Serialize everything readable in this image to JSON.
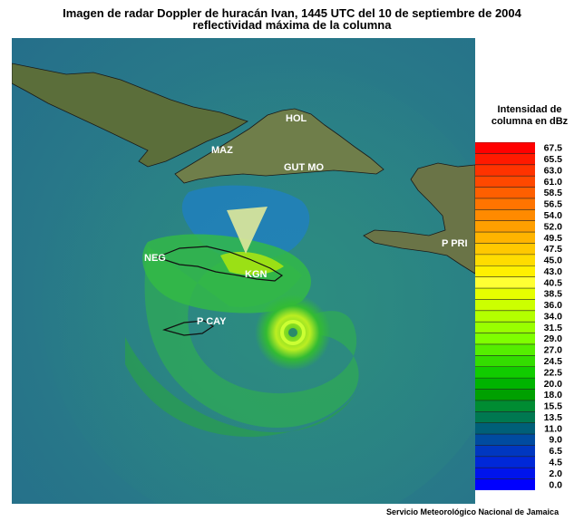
{
  "title": {
    "line1": "Imagen de radar Doppler de huracán Ivan, 1445 UTC del 10 de septiembre de 2004",
    "line2": "reflectividad máxima de la columna"
  },
  "legend": {
    "title_line1": "Intensidad de",
    "title_line2": "columna en dBz",
    "values": [
      "67.5",
      "65.5",
      "63.0",
      "61.0",
      "58.5",
      "56.5",
      "54.0",
      "52.0",
      "49.5",
      "47.5",
      "45.0",
      "43.0",
      "40.5",
      "38.5",
      "36.0",
      "34.0",
      "31.5",
      "29.0",
      "27.0",
      "24.5",
      "22.5",
      "20.0",
      "18.0",
      "15.5",
      "13.5",
      "11.0",
      "9.0",
      "6.5",
      "4.5",
      "2.0",
      "0.0"
    ],
    "colors": [
      "#ff0000",
      "#ff1a00",
      "#ff3300",
      "#ff4800",
      "#ff5f00",
      "#ff7400",
      "#ff8a00",
      "#ff9f00",
      "#ffb400",
      "#ffc800",
      "#ffdc00",
      "#fff000",
      "#ffff33",
      "#e6ff00",
      "#ccff00",
      "#b3ff00",
      "#99ff00",
      "#7fff00",
      "#55ee00",
      "#33dd00",
      "#11cc00",
      "#00b400",
      "#00a000",
      "#008c32",
      "#007850",
      "#005f78",
      "#004ba0",
      "#0037c0",
      "#0028d8",
      "#0014ec",
      "#0000ff"
    ]
  },
  "stations": {
    "hol": "HOL",
    "maz": "MAZ",
    "gutmo": "GUT MO",
    "neg": "NEG",
    "kgn": "KGN",
    "ppri": "P PRI",
    "pcay": "P CAY"
  },
  "credit": "Servicio Meteorológico Nacional de Jamaica"
}
